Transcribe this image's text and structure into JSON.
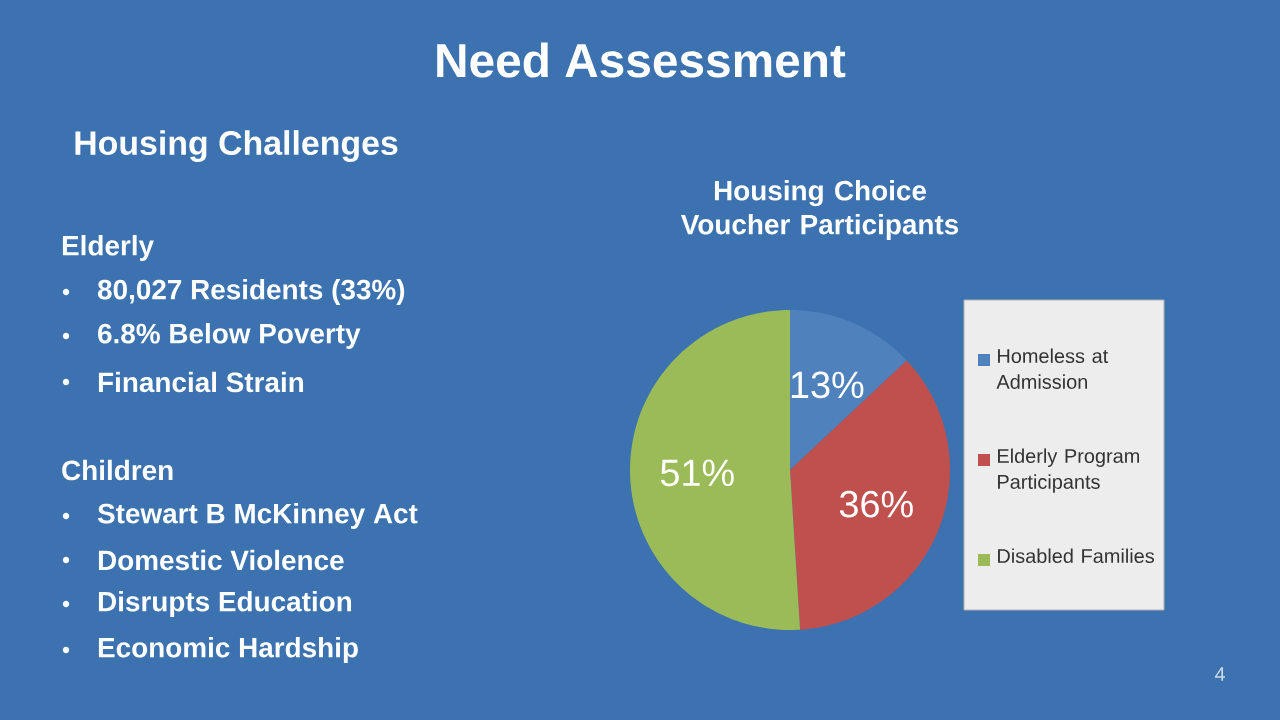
{
  "chart_data": [
    {
      "type": "other",
      "title": "Need Assessment",
      "subtitle": "Housing Challenges",
      "annotations": [
        "Elderly",
        "80,027 Residents (33%)",
        "6.8% Below Poverty",
        "Financial Strain",
        "Children",
        "Stewart B McKinney Act",
        "Domestic Violence",
        "Disrupts Education",
        "Economic Hardship",
        "4"
      ]
    },
    {
      "type": "pie",
      "title": "Housing Choice Voucher Participants",
      "categories": [
        "Homeless at Admission",
        "Elderly Program Participants",
        "Disabled Families"
      ],
      "values": [
        13,
        36,
        51
      ],
      "value_labels": [
        "13%",
        "36%",
        "51%"
      ],
      "colors": [
        "#4f81bd",
        "#c0504d",
        "#9bbb59"
      ],
      "legend": "right"
    }
  ]
}
